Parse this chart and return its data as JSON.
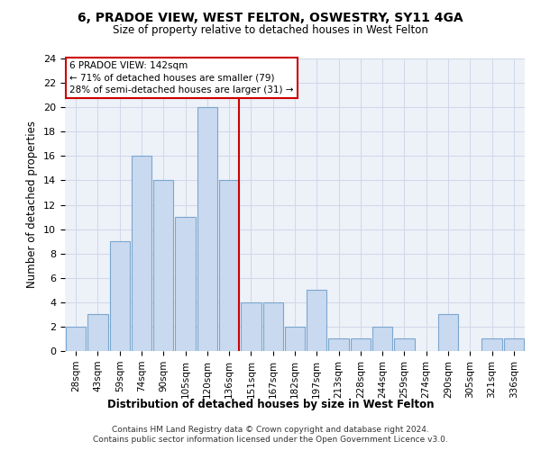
{
  "title": "6, PRADOE VIEW, WEST FELTON, OSWESTRY, SY11 4GA",
  "subtitle": "Size of property relative to detached houses in West Felton",
  "xlabel": "Distribution of detached houses by size in West Felton",
  "ylabel": "Number of detached properties",
  "categories": [
    "28sqm",
    "43sqm",
    "59sqm",
    "74sqm",
    "90sqm",
    "105sqm",
    "120sqm",
    "136sqm",
    "151sqm",
    "167sqm",
    "182sqm",
    "197sqm",
    "213sqm",
    "228sqm",
    "244sqm",
    "259sqm",
    "274sqm",
    "290sqm",
    "305sqm",
    "321sqm",
    "336sqm"
  ],
  "values": [
    2,
    3,
    9,
    16,
    14,
    11,
    20,
    14,
    4,
    4,
    2,
    5,
    1,
    1,
    2,
    1,
    0,
    3,
    0,
    1,
    1
  ],
  "bar_color": "#c9d9ef",
  "bar_edge_color": "#7ba7d0",
  "vline_index": 7,
  "vline_color": "#cc0000",
  "annotation_title": "6 PRADOE VIEW: 142sqm",
  "annotation_line1": "← 71% of detached houses are smaller (79)",
  "annotation_line2": "28% of semi-detached houses are larger (31) →",
  "annotation_box_color": "#cc0000",
  "ylim": [
    0,
    24
  ],
  "yticks": [
    0,
    2,
    4,
    6,
    8,
    10,
    12,
    14,
    16,
    18,
    20,
    22,
    24
  ],
  "footnote1": "Contains HM Land Registry data © Crown copyright and database right 2024.",
  "footnote2": "Contains public sector information licensed under the Open Government Licence v3.0.",
  "bg_color": "#edf1f8",
  "grid_color": "#d0d8e8",
  "title_fontsize": 10,
  "subtitle_fontsize": 8.5
}
